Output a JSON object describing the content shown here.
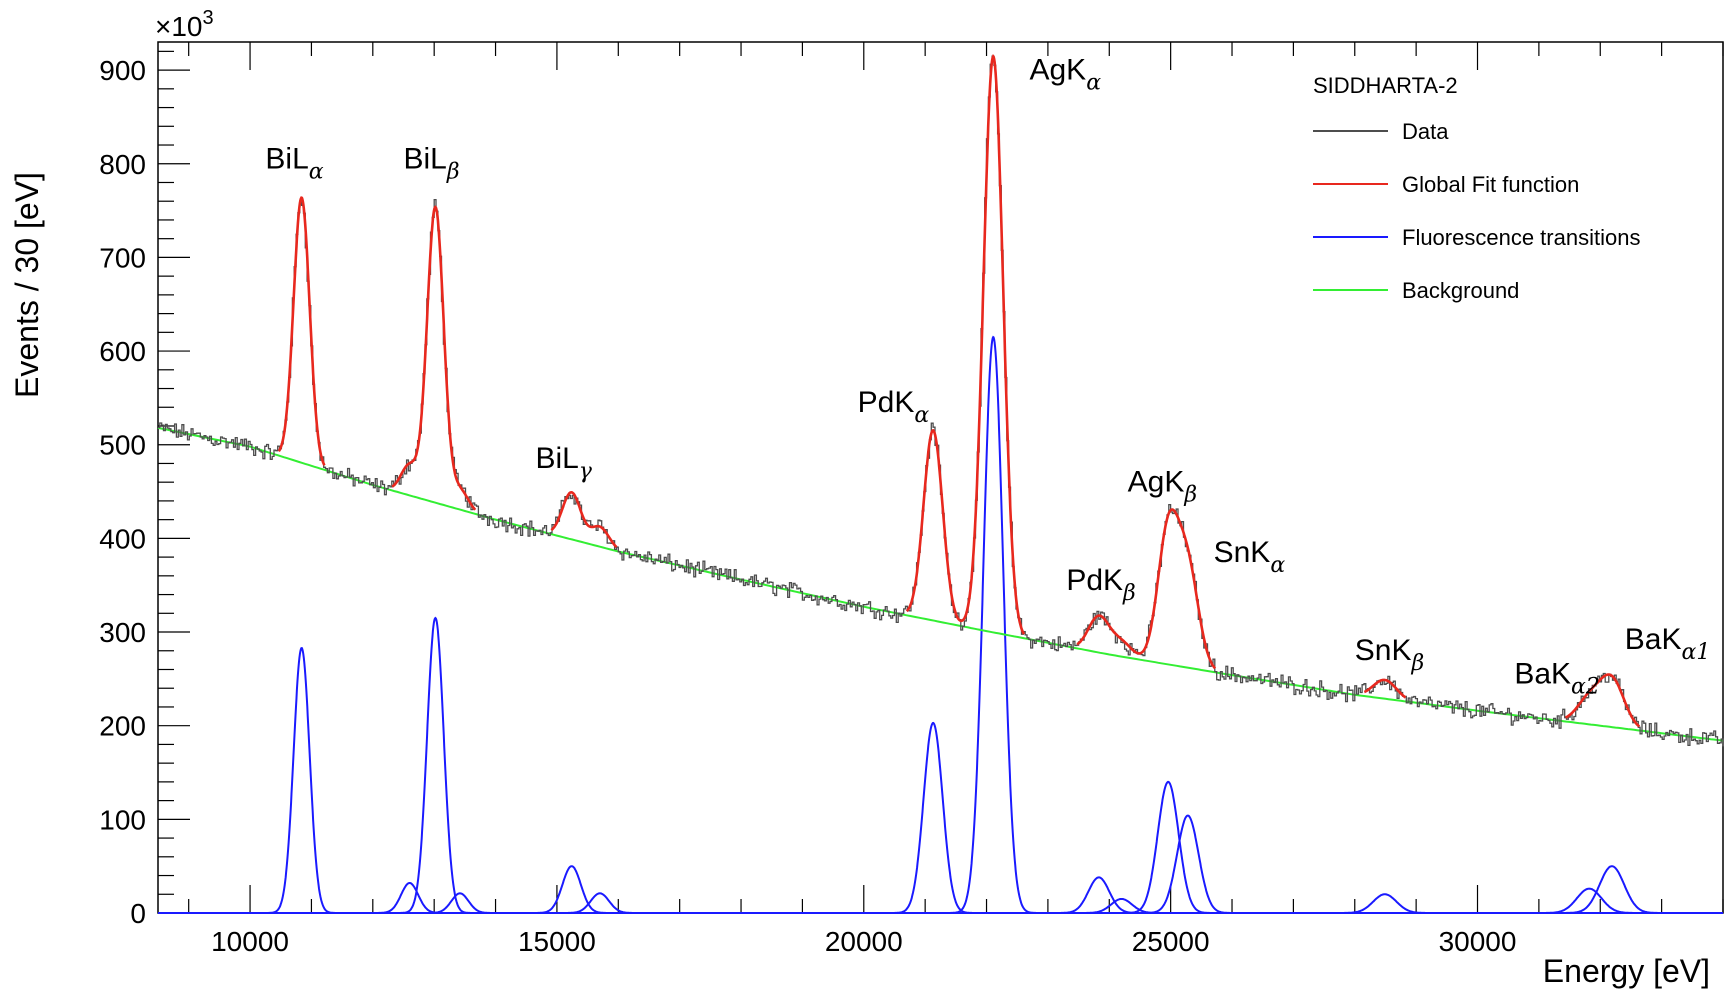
{
  "chart_data": {
    "type": "line",
    "title": "",
    "xlabel": "Energy [eV]",
    "ylabel": "Events / 30 [eV]",
    "y_multiplier": "×10",
    "y_multiplier_exp": "3",
    "xlim": [
      8500,
      34000
    ],
    "ylim": [
      0,
      930
    ],
    "x_ticks": [
      10000,
      15000,
      20000,
      25000,
      30000
    ],
    "x_tick_labels": [
      "10000",
      "15000",
      "20000",
      "25000",
      "30000"
    ],
    "y_ticks": [
      0,
      100,
      200,
      300,
      400,
      500,
      600,
      700,
      800,
      900
    ],
    "y_tick_labels": [
      "0",
      "100",
      "200",
      "300",
      "400",
      "500",
      "600",
      "700",
      "800",
      "900"
    ],
    "legend": {
      "title": "SIDDHARTA-2",
      "placement": "top-right",
      "entries": [
        {
          "label": "Data",
          "color": "#4d4d4d"
        },
        {
          "label": "Global Fit function",
          "color": "#e8281e"
        },
        {
          "label": "Fluorescence transitions",
          "color": "#1a1aff"
        },
        {
          "label": "Background",
          "color": "#33ee33"
        }
      ]
    },
    "background": {
      "x": [
        8500,
        10000,
        12000,
        14000,
        16000,
        18000,
        20000,
        22000,
        24000,
        26000,
        28000,
        30000,
        32000,
        34000
      ],
      "y": [
        518,
        498,
        457,
        420,
        386,
        356,
        327,
        301,
        276,
        254,
        233,
        216,
        200,
        184
      ]
    },
    "peaks": [
      {
        "name": "BiLα",
        "base": "BiL",
        "sub": "α",
        "sub_greek": true,
        "energy": 10840,
        "amplitude": 283,
        "sigma": 130
      },
      {
        "name": "BiLβ2",
        "base": "",
        "sub": "",
        "sub_greek": false,
        "energy": 12600,
        "amplitude": 32,
        "sigma": 140
      },
      {
        "name": "BiLβ",
        "base": "BiL",
        "sub": "β",
        "sub_greek": true,
        "energy": 13020,
        "amplitude": 315,
        "sigma": 135
      },
      {
        "name": "BiLβ3",
        "base": "",
        "sub": "",
        "sub_greek": false,
        "energy": 13420,
        "amplitude": 21,
        "sigma": 140
      },
      {
        "name": "BiLγ",
        "base": "BiL",
        "sub": "γ",
        "sub_greek": true,
        "energy": 15240,
        "amplitude": 50,
        "sigma": 150
      },
      {
        "name": "BiLγ2",
        "base": "",
        "sub": "",
        "sub_greek": false,
        "energy": 15700,
        "amplitude": 21,
        "sigma": 150
      },
      {
        "name": "PdKα",
        "base": "PdK",
        "sub": "α",
        "sub_greek": true,
        "energy": 21130,
        "amplitude": 203,
        "sigma": 155
      },
      {
        "name": "AgKα",
        "base": "AgK",
        "sub": "α",
        "sub_greek": true,
        "energy": 22110,
        "amplitude": 615,
        "sigma": 160
      },
      {
        "name": "PdKβ",
        "base": "PdK",
        "sub": "β",
        "sub_greek": true,
        "energy": 23830,
        "amplitude": 38,
        "sigma": 170
      },
      {
        "name": "PdKβ2",
        "base": "",
        "sub": "",
        "sub_greek": false,
        "energy": 24200,
        "amplitude": 15,
        "sigma": 170
      },
      {
        "name": "AgKβ",
        "base": "AgK",
        "sub": "β",
        "sub_greek": true,
        "energy": 24960,
        "amplitude": 140,
        "sigma": 170
      },
      {
        "name": "SnKα",
        "base": "SnK",
        "sub": "α",
        "sub_greek": true,
        "energy": 25280,
        "amplitude": 104,
        "sigma": 175
      },
      {
        "name": "SnKβ",
        "base": "SnK",
        "sub": "β",
        "sub_greek": true,
        "energy": 28490,
        "amplitude": 20,
        "sigma": 190
      },
      {
        "name": "BaKα2",
        "base": "BaK",
        "sub": "α2",
        "sub_greek": true,
        "energy": 31820,
        "amplitude": 26,
        "sigma": 200
      },
      {
        "name": "BaKα1",
        "base": "BaK",
        "sub": "α1",
        "sub_greek": true,
        "energy": 32190,
        "amplitude": 50,
        "sigma": 200
      }
    ],
    "annotations": [
      {
        "base": "BiL",
        "sub": "α",
        "x": 10250,
        "y": 795
      },
      {
        "base": "BiL",
        "sub": "β",
        "x": 12500,
        "y": 795
      },
      {
        "base": "BiL",
        "sub": "γ",
        "x": 14650,
        "y": 475
      },
      {
        "base": "PdK",
        "sub": "α",
        "x": 19900,
        "y": 535
      },
      {
        "base": "AgK",
        "sub": "α",
        "x": 22700,
        "y": 890
      },
      {
        "base": "PdK",
        "sub": "β",
        "x": 23300,
        "y": 345
      },
      {
        "base": "AgK",
        "sub": "β",
        "x": 24300,
        "y": 450
      },
      {
        "base": "SnK",
        "sub": "α",
        "x": 25700,
        "y": 375
      },
      {
        "base": "SnK",
        "sub": "β",
        "x": 28000,
        "y": 270
      },
      {
        "base": "BaK",
        "sub": "α2",
        "x": 30600,
        "y": 245
      },
      {
        "base": "BaK",
        "sub": "α1",
        "x": 32400,
        "y": 282
      }
    ]
  }
}
